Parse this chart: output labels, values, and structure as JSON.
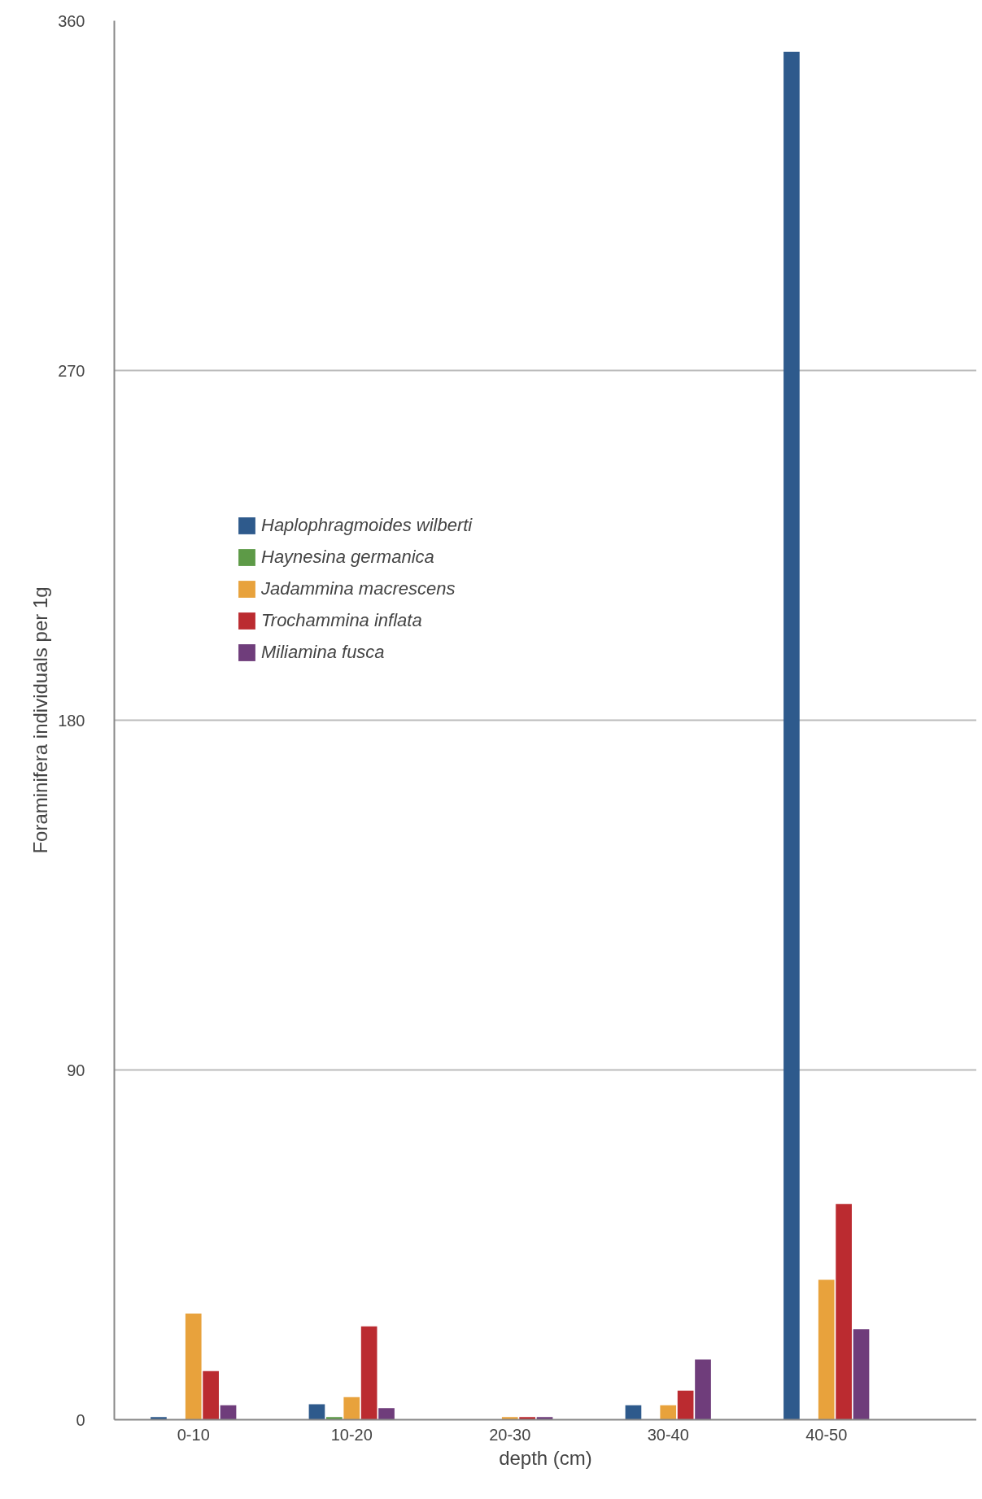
{
  "chart_data": {
    "type": "bar",
    "xlabel": "depth (cm)",
    "ylabel": "Foraminifera individuals per 1g",
    "categories": [
      "0-10",
      "10-20",
      "20-30",
      "30-40",
      "40-50"
    ],
    "series": [
      {
        "name": "Haplophragmoides wilberti",
        "color": "#2e5a8c",
        "values": [
          0.7,
          4,
          0,
          3.7,
          352
        ]
      },
      {
        "name": "Haynesina germanica",
        "color": "#5d9a47",
        "values": [
          0,
          0.7,
          0,
          0,
          0
        ]
      },
      {
        "name": "Jadammina macrescens",
        "color": "#e8a23c",
        "values": [
          27.3,
          5.8,
          0.7,
          3.7,
          36
        ]
      },
      {
        "name": "Trochammina inflata",
        "color": "#bb2b30",
        "values": [
          12.5,
          24,
          0.7,
          7.5,
          55.5
        ]
      },
      {
        "name": "Miliamina fusca",
        "color": "#6f3d7b",
        "values": [
          3.7,
          3,
          0.7,
          15.5,
          23.3
        ]
      }
    ],
    "ylim": [
      0,
      360
    ],
    "yticks": [
      0,
      90,
      180,
      270,
      360
    ],
    "grid": "y",
    "legend": "top left"
  }
}
